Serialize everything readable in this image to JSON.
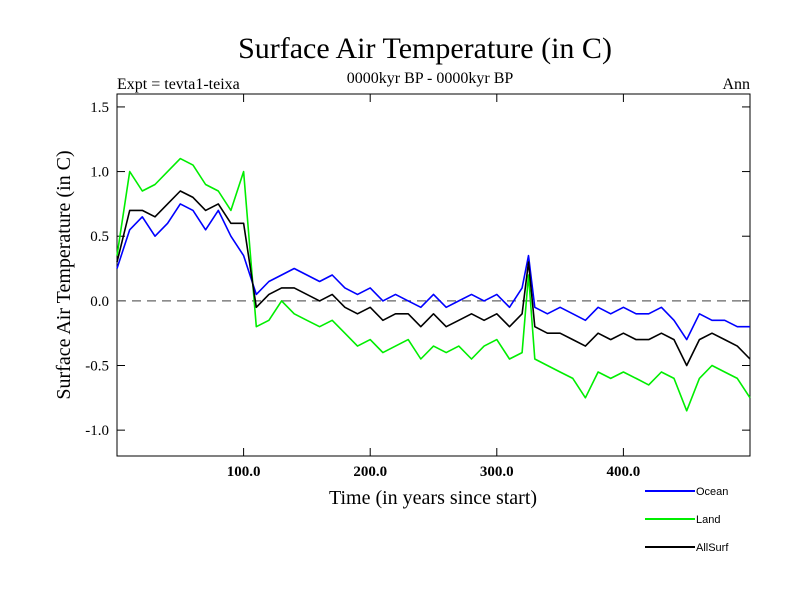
{
  "chart_data": {
    "type": "line",
    "title": "Surface Air Temperature (in C)",
    "subtitle": "0000kyr BP - 0000kyr BP",
    "left_label": "Expt = tevta1-teixa",
    "right_label": "Ann",
    "xlabel": "Time (in years since start)",
    "ylabel": "Surface Air Temperature (in C)",
    "xlim": [
      0,
      500
    ],
    "ylim": [
      -1.2,
      1.6
    ],
    "xticks": [
      100,
      200,
      300,
      400
    ],
    "xtick_labels": [
      "100.0",
      "200.0",
      "300.0",
      "400.0"
    ],
    "yticks": [
      1.5,
      1.0,
      0.5,
      0.0,
      -0.5,
      -1.0
    ],
    "ytick_labels": [
      "1.5",
      "1.0",
      "0.5",
      "0.0",
      "-0.5",
      "-1.0"
    ],
    "zero_line": 0.0,
    "legend_position": "bottom-right",
    "series": [
      {
        "name": "Ocean",
        "color": "#0000ff",
        "x": [
          0,
          10,
          20,
          30,
          40,
          50,
          60,
          70,
          80,
          90,
          100,
          110,
          120,
          130,
          140,
          150,
          160,
          170,
          180,
          190,
          200,
          210,
          220,
          230,
          240,
          250,
          260,
          270,
          280,
          290,
          300,
          310,
          320,
          325,
          330,
          340,
          350,
          360,
          370,
          380,
          390,
          400,
          410,
          420,
          430,
          440,
          450,
          460,
          470,
          480,
          490,
          500
        ],
        "values": [
          0.25,
          0.55,
          0.65,
          0.5,
          0.6,
          0.75,
          0.7,
          0.55,
          0.7,
          0.5,
          0.35,
          0.05,
          0.15,
          0.2,
          0.25,
          0.2,
          0.15,
          0.2,
          0.1,
          0.05,
          0.1,
          0.0,
          0.05,
          0.0,
          -0.05,
          0.05,
          -0.05,
          0.0,
          0.05,
          0.0,
          0.05,
          -0.05,
          0.1,
          0.35,
          -0.05,
          -0.1,
          -0.05,
          -0.1,
          -0.15,
          -0.05,
          -0.1,
          -0.05,
          -0.1,
          -0.1,
          -0.05,
          -0.15,
          -0.3,
          -0.1,
          -0.15,
          -0.15,
          -0.2,
          -0.2
        ]
      },
      {
        "name": "Land",
        "color": "#00ee00",
        "x": [
          0,
          10,
          20,
          30,
          40,
          50,
          60,
          70,
          80,
          90,
          100,
          110,
          120,
          130,
          140,
          150,
          160,
          170,
          180,
          190,
          200,
          210,
          220,
          230,
          240,
          250,
          260,
          270,
          280,
          290,
          300,
          310,
          320,
          325,
          330,
          340,
          350,
          360,
          370,
          380,
          390,
          400,
          410,
          420,
          430,
          440,
          450,
          460,
          470,
          480,
          490,
          500
        ],
        "values": [
          0.35,
          1.0,
          0.85,
          0.9,
          1.0,
          1.1,
          1.05,
          0.9,
          0.85,
          0.7,
          1.0,
          -0.2,
          -0.15,
          0.0,
          -0.1,
          -0.15,
          -0.2,
          -0.15,
          -0.25,
          -0.35,
          -0.3,
          -0.4,
          -0.35,
          -0.3,
          -0.45,
          -0.35,
          -0.4,
          -0.35,
          -0.45,
          -0.35,
          -0.3,
          -0.45,
          -0.4,
          0.2,
          -0.45,
          -0.5,
          -0.55,
          -0.6,
          -0.75,
          -0.55,
          -0.6,
          -0.55,
          -0.6,
          -0.65,
          -0.55,
          -0.6,
          -0.85,
          -0.6,
          -0.5,
          -0.55,
          -0.6,
          -0.75
        ]
      },
      {
        "name": "AllSurf",
        "color": "#000000",
        "x": [
          0,
          10,
          20,
          30,
          40,
          50,
          60,
          70,
          80,
          90,
          100,
          110,
          120,
          130,
          140,
          150,
          160,
          170,
          180,
          190,
          200,
          210,
          220,
          230,
          240,
          250,
          260,
          270,
          280,
          290,
          300,
          310,
          320,
          325,
          330,
          340,
          350,
          360,
          370,
          380,
          390,
          400,
          410,
          420,
          430,
          440,
          450,
          460,
          470,
          480,
          490,
          500
        ],
        "values": [
          0.3,
          0.7,
          0.7,
          0.65,
          0.75,
          0.85,
          0.8,
          0.7,
          0.75,
          0.6,
          0.6,
          -0.05,
          0.05,
          0.1,
          0.1,
          0.05,
          0.0,
          0.05,
          -0.05,
          -0.1,
          -0.05,
          -0.15,
          -0.1,
          -0.1,
          -0.2,
          -0.1,
          -0.2,
          -0.15,
          -0.1,
          -0.15,
          -0.1,
          -0.2,
          -0.1,
          0.3,
          -0.2,
          -0.25,
          -0.25,
          -0.3,
          -0.35,
          -0.25,
          -0.3,
          -0.25,
          -0.3,
          -0.3,
          -0.25,
          -0.3,
          -0.5,
          -0.3,
          -0.25,
          -0.3,
          -0.35,
          -0.45
        ]
      }
    ]
  }
}
